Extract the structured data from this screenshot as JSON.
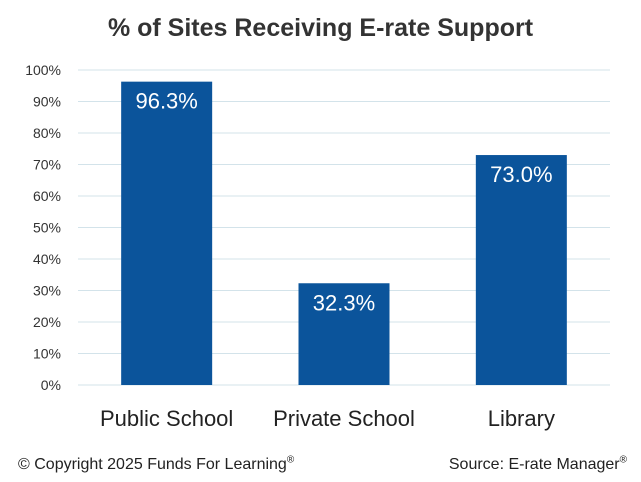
{
  "chart_data": {
    "type": "bar",
    "title": "% of Sites Receiving E-rate Support",
    "categories": [
      "Public School",
      "Private School",
      "Library"
    ],
    "values": [
      96.3,
      32.3,
      73.0
    ],
    "data_labels": [
      "96.3%",
      "32.3%",
      "73.0%"
    ],
    "ylim": [
      0,
      100
    ],
    "y_ticks": [
      "0%",
      "10%",
      "20%",
      "30%",
      "40%",
      "50%",
      "60%",
      "70%",
      "80%",
      "90%",
      "100%"
    ],
    "grid": true,
    "bar_color": "#0b549b",
    "grid_color": "#d3e3ea"
  },
  "footer": {
    "copyright": "© Copyright 2025 Funds For Learning",
    "copyright_mark": "®",
    "source": "Source: E-rate Manager",
    "source_mark": "®"
  }
}
